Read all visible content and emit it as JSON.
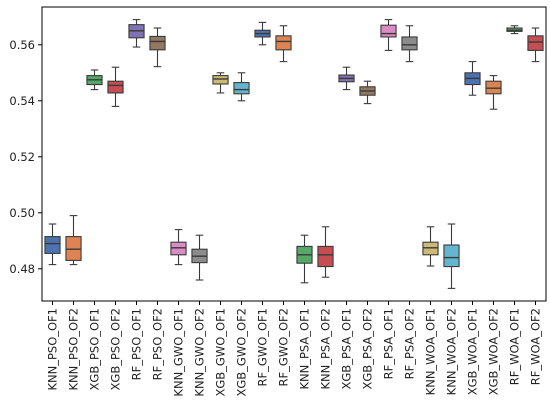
{
  "chart_data": {
    "type": "box",
    "title": "",
    "xlabel": "",
    "ylabel": "",
    "ylim": [
      0.4685,
      0.5735
    ],
    "yticks": [
      0.48,
      0.5,
      0.52,
      0.54,
      0.56
    ],
    "ytick_labels": [
      "0.48",
      "0.50",
      "0.52",
      "0.54",
      "0.56"
    ],
    "grid": false,
    "legend": "none",
    "categories": [
      "KNN_PSO_OF1",
      "KNN_PSO_OF2",
      "XGB_PSO_OF1",
      "XGB_PSO_OF2",
      "RF_PSO_OF1",
      "RF_PSO_OF2",
      "KNN_GWO_OF1",
      "KNN_GWO_OF2",
      "XGB_GWO_OF1",
      "XGB_GWO_OF2",
      "RF_GWO_OF1",
      "RF_GWO_OF2",
      "KNN_PSA_OF1",
      "KNN_PSA_OF2",
      "XGB_PSA_OF1",
      "XGB_PSA_OF2",
      "RF_PSA_OF1",
      "RF_PSA_OF2",
      "KNN_WOA_OF1",
      "KNN_WOA_OF2",
      "XGB_WOA_OF1",
      "XGB_WOA_OF2",
      "RF_WOA_OF1",
      "RF_WOA_OF2"
    ],
    "boxes": [
      {
        "min": 0.4815,
        "q1": 0.4855,
        "median": 0.489,
        "q3": 0.4915,
        "max": 0.496
      },
      {
        "min": 0.4815,
        "q1": 0.483,
        "median": 0.487,
        "q3": 0.4915,
        "max": 0.499
      },
      {
        "min": 0.544,
        "q1": 0.5458,
        "median": 0.5475,
        "q3": 0.549,
        "max": 0.551
      },
      {
        "min": 0.538,
        "q1": 0.5428,
        "median": 0.5455,
        "q3": 0.547,
        "max": 0.552
      },
      {
        "min": 0.5592,
        "q1": 0.5625,
        "median": 0.565,
        "q3": 0.5672,
        "max": 0.569
      },
      {
        "min": 0.5522,
        "q1": 0.5582,
        "median": 0.5612,
        "q3": 0.563,
        "max": 0.566
      },
      {
        "min": 0.4815,
        "q1": 0.485,
        "median": 0.4875,
        "q3": 0.4895,
        "max": 0.494
      },
      {
        "min": 0.476,
        "q1": 0.4822,
        "median": 0.4845,
        "q3": 0.487,
        "max": 0.492
      },
      {
        "min": 0.5428,
        "q1": 0.546,
        "median": 0.5478,
        "q3": 0.549,
        "max": 0.55
      },
      {
        "min": 0.54,
        "q1": 0.5425,
        "median": 0.544,
        "q3": 0.5465,
        "max": 0.55
      },
      {
        "min": 0.56,
        "q1": 0.5628,
        "median": 0.564,
        "q3": 0.5652,
        "max": 0.568
      },
      {
        "min": 0.554,
        "q1": 0.5582,
        "median": 0.5612,
        "q3": 0.5632,
        "max": 0.5668
      },
      {
        "min": 0.475,
        "q1": 0.482,
        "median": 0.485,
        "q3": 0.488,
        "max": 0.492
      },
      {
        "min": 0.477,
        "q1": 0.4808,
        "median": 0.485,
        "q3": 0.488,
        "max": 0.495
      },
      {
        "min": 0.544,
        "q1": 0.5468,
        "median": 0.548,
        "q3": 0.5492,
        "max": 0.552
      },
      {
        "min": 0.539,
        "q1": 0.542,
        "median": 0.5435,
        "q3": 0.545,
        "max": 0.547
      },
      {
        "min": 0.558,
        "q1": 0.5628,
        "median": 0.564,
        "q3": 0.567,
        "max": 0.569
      },
      {
        "min": 0.554,
        "q1": 0.5582,
        "median": 0.56,
        "q3": 0.5628,
        "max": 0.5668
      },
      {
        "min": 0.481,
        "q1": 0.485,
        "median": 0.4875,
        "q3": 0.4895,
        "max": 0.495
      },
      {
        "min": 0.473,
        "q1": 0.4808,
        "median": 0.484,
        "q3": 0.4885,
        "max": 0.496
      },
      {
        "min": 0.542,
        "q1": 0.5458,
        "median": 0.548,
        "q3": 0.55,
        "max": 0.554
      },
      {
        "min": 0.537,
        "q1": 0.5425,
        "median": 0.5445,
        "q3": 0.547,
        "max": 0.549
      },
      {
        "min": 0.564,
        "q1": 0.5648,
        "median": 0.5652,
        "q3": 0.566,
        "max": 0.5668
      },
      {
        "min": 0.554,
        "q1": 0.558,
        "median": 0.561,
        "q3": 0.5632,
        "max": 0.566
      }
    ],
    "colors": [
      "#4c72b0",
      "#dd8452",
      "#55a868",
      "#c44e52",
      "#8172b3",
      "#937860",
      "#da8bc3",
      "#8c8c8c",
      "#ccb974",
      "#64b5cd",
      "#4c72b0",
      "#dd8452",
      "#55a868",
      "#c44e52",
      "#8172b3",
      "#937860",
      "#da8bc3",
      "#8c8c8c",
      "#ccb974",
      "#64b5cd",
      "#4c72b0",
      "#dd8452",
      "#55a868",
      "#c44e52"
    ]
  }
}
